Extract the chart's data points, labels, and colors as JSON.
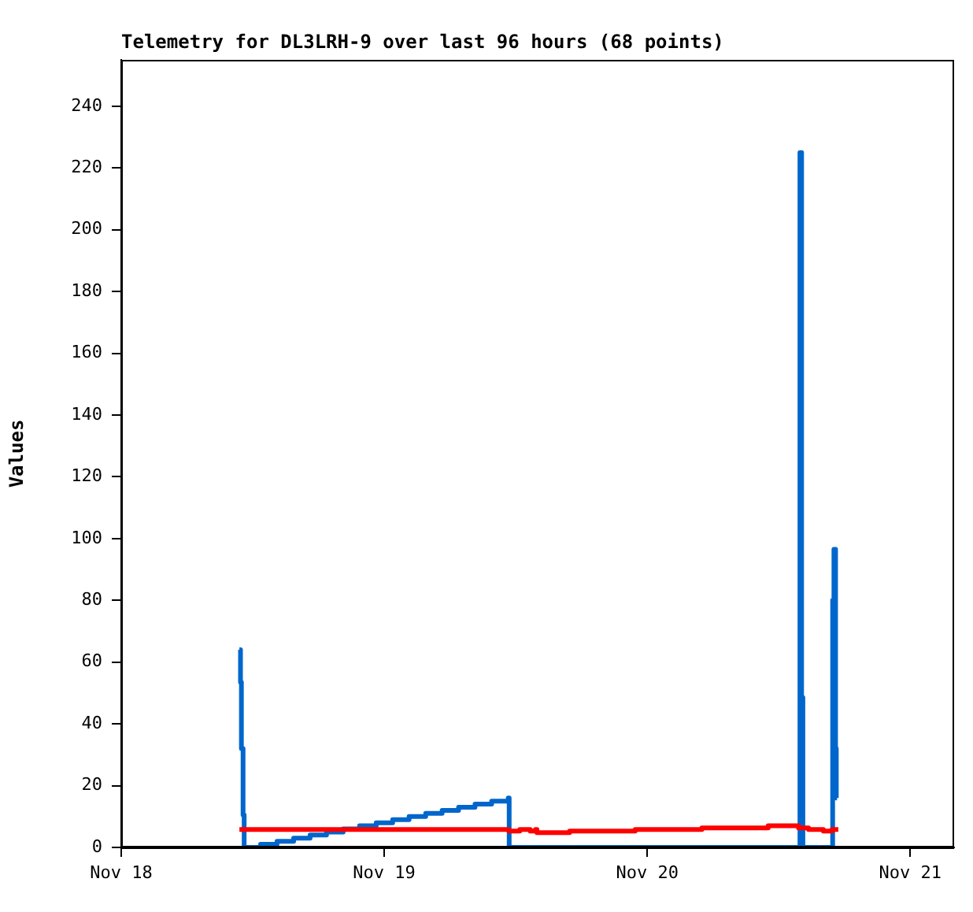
{
  "chart_data": {
    "type": "step",
    "title": "Telemetry for DL3LRH-9 over last 96 hours (68 points)",
    "ylabel": "Values",
    "xlim": [
      "--11-18",
      "--11-21T04:00"
    ],
    "xticks": [
      {
        "value": "--11-18",
        "label": "Nov 18"
      },
      {
        "value": "--11-19",
        "label": "Nov 19"
      },
      {
        "value": "--11-20",
        "label": "Nov 20"
      },
      {
        "value": "--11-21",
        "label": "Nov 21"
      }
    ],
    "ylim": [
      0,
      255
    ],
    "yticks": [
      0,
      20,
      40,
      60,
      80,
      100,
      120,
      140,
      160,
      180,
      200,
      220,
      240
    ],
    "grid": false,
    "legend": false,
    "series": [
      {
        "color": "#ff0000",
        "x": [
          "--11-18T10:47",
          "--11-19T11:22",
          "--11-19T12:22",
          "--11-19T13:19",
          "--11-19T13:48",
          "--11-19T13:56",
          "--11-19T16:55",
          "--11-19T22:54",
          "--11-20T04:59",
          "--11-20T11:02",
          "--11-20T13:48",
          "--11-20T14:43",
          "--11-20T16:04",
          "--11-20T16:52",
          "--11-20T17:26"
        ],
        "values": [
          5.8,
          5.3,
          5.8,
          5.3,
          5.8,
          4.8,
          5.3,
          5.8,
          6.3,
          7,
          6.3,
          5.8,
          5.3,
          5.8,
          5.8
        ]
      },
      {
        "color": "#0066cc",
        "x": [
          "--11-18T10:47",
          "--11-18T10:53",
          "--11-18T10:58",
          "--11-18T11:07",
          "--11-18T11:13",
          "--11-18T12:43",
          "--11-18T14:13",
          "--11-18T15:44",
          "--11-18T17:14",
          "--11-18T18:44",
          "--11-18T20:15",
          "--11-18T21:45",
          "--11-18T23:16",
          "--11-19T00:46",
          "--11-19T02:16",
          "--11-19T03:47",
          "--11-19T05:17",
          "--11-19T06:47",
          "--11-19T08:17",
          "--11-19T09:48",
          "--11-19T11:19",
          "--11-19T11:24",
          "--11-20T13:56",
          "--11-20T14:05",
          "--11-20T14:12",
          "--11-20T16:55",
          "--11-20T17:02",
          "--11-20T17:11",
          "--11-20T17:15",
          "--11-20T17:19"
        ],
        "values": [
          64,
          53.5,
          32,
          10.5,
          0,
          1,
          2,
          3,
          4,
          5,
          6,
          7,
          8,
          9,
          10,
          11,
          12,
          13,
          14,
          15,
          16,
          0,
          225,
          48.5,
          0,
          80,
          96.5,
          32,
          16,
          16
        ]
      }
    ]
  }
}
